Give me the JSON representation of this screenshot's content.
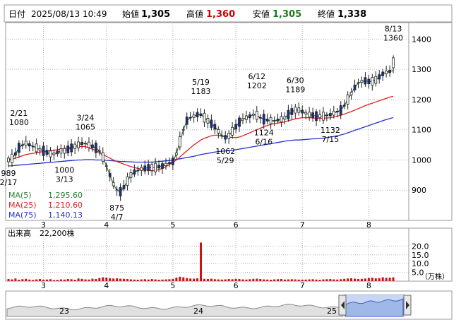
{
  "header": {
    "date_label": "日付",
    "date_value": "2025/08/13 10:49",
    "open_label": "始値",
    "open_value": "1,305",
    "high_label": "高値",
    "high_value": "1,360",
    "low_label": "安値",
    "low_value": "1,305",
    "close_label": "終値",
    "close_value": "1,338"
  },
  "legend": {
    "ma5_label": "MA(5)",
    "ma5_value": "1,295.60",
    "ma25_label": "MA(25)",
    "ma25_value": "1,210.60",
    "ma75_label": "MA(75)",
    "ma75_value": "1,140.13"
  },
  "volume_header": {
    "label": "出来高",
    "value": "22,200株"
  },
  "colors": {
    "up": "#ffffff",
    "down": "#1f2f8f",
    "candle_outline": "#222222",
    "ma5": "#2e7d32",
    "ma25": "#e02020",
    "ma75": "#2233cc",
    "high_text": "#d00000",
    "low_text": "#1a7a1a",
    "volume": "#d01010",
    "grid": "#b0b0b0",
    "mini_fill": "#a0b8e8"
  },
  "chart_data": [
    {
      "type": "candlestick",
      "ylim": [
        800,
        1450
      ],
      "y_ticks": [
        "1400",
        "1300",
        "1200",
        "1100",
        "1000",
        "900"
      ],
      "y_tick_values": [
        1400,
        1300,
        1200,
        1100,
        1000,
        900
      ],
      "x_ticks": [
        "3",
        "4",
        "5",
        "6",
        "7",
        "8"
      ],
      "x_tick_days": [
        10,
        28,
        47,
        65,
        84,
        103
      ],
      "total_days": 112,
      "annotations": [
        {
          "date": "2/21",
          "price": "1080",
          "day": 3,
          "value": 1080,
          "pos": "above"
        },
        {
          "date": "3/24",
          "price": "1065",
          "day": 22,
          "value": 1065,
          "pos": "above"
        },
        {
          "date": "5/19",
          "price": "1183",
          "day": 55,
          "value": 1183,
          "pos": "above"
        },
        {
          "date": "6/12",
          "price": "1202",
          "day": 71,
          "value": 1202,
          "pos": "above"
        },
        {
          "date": "6/30",
          "price": "1189",
          "day": 82,
          "value": 1189,
          "pos": "above"
        },
        {
          "date": "8/13",
          "price": "1360",
          "day": 110,
          "value": 1360,
          "pos": "above"
        },
        {
          "date": "2/17",
          "price": "989",
          "day": 0,
          "value": 989,
          "pos": "below"
        },
        {
          "date": "3/13",
          "price": "1000",
          "day": 16,
          "value": 1000,
          "pos": "below"
        },
        {
          "date": "4/7",
          "price": "875",
          "day": 31,
          "value": 875,
          "pos": "below"
        },
        {
          "date": "5/29",
          "price": "1062",
          "day": 62,
          "value": 1062,
          "pos": "below"
        },
        {
          "date": "6/16",
          "price": "1124",
          "day": 73,
          "value": 1124,
          "pos": "below"
        },
        {
          "date": "7/15",
          "price": "1132",
          "day": 92,
          "value": 1132,
          "pos": "below"
        }
      ],
      "series_ma5": [
        1000,
        1005,
        1020,
        1040,
        1050,
        1055,
        1050,
        1045,
        1040,
        1035,
        1030,
        1025,
        1020,
        1020,
        1025,
        1030,
        1030,
        1035,
        1040,
        1045,
        1050,
        1055,
        1055,
        1050,
        1045,
        1040,
        1030,
        1010,
        980,
        950,
        920,
        900,
        895,
        910,
        930,
        950,
        960,
        965,
        970,
        972,
        975,
        975,
        975,
        978,
        980,
        985,
        990,
        995,
        1020,
        1060,
        1100,
        1130,
        1140,
        1145,
        1150,
        1150,
        1140,
        1130,
        1120,
        1110,
        1095,
        1080,
        1075,
        1080,
        1095,
        1110,
        1125,
        1135,
        1140,
        1145,
        1150,
        1148,
        1140,
        1135,
        1132,
        1130,
        1130,
        1132,
        1135,
        1140,
        1150,
        1160,
        1165,
        1165,
        1160,
        1155,
        1150,
        1148,
        1145,
        1145,
        1145,
        1148,
        1150,
        1155,
        1160,
        1165,
        1180,
        1200,
        1220,
        1240,
        1255,
        1260,
        1262,
        1260,
        1260,
        1265,
        1275,
        1285,
        1290,
        1293,
        1295.6
      ],
      "series_ma25": [
        1000,
        1003,
        1006,
        1010,
        1014,
        1018,
        1020,
        1022,
        1024,
        1026,
        1028,
        1030,
        1031,
        1032,
        1034,
        1036,
        1038,
        1040,
        1042,
        1043,
        1044,
        1045,
        1044,
        1040,
        1036,
        1030,
        1024,
        1018,
        1012,
        1006,
        1000,
        995,
        990,
        986,
        982,
        978,
        975,
        972,
        970,
        968,
        966,
        964,
        965,
        968,
        972,
        978,
        985,
        992,
        1000,
        1010,
        1020,
        1030,
        1040,
        1050,
        1058,
        1066,
        1072,
        1076,
        1080,
        1082,
        1082,
        1080,
        1078,
        1076,
        1074,
        1074,
        1076,
        1080,
        1085,
        1090,
        1095,
        1100,
        1105,
        1110,
        1114,
        1118,
        1120,
        1122,
        1124,
        1126,
        1130,
        1133,
        1136,
        1138,
        1140,
        1140,
        1140,
        1139,
        1138,
        1138,
        1138,
        1139,
        1140,
        1142,
        1145,
        1148,
        1152,
        1156,
        1160,
        1165,
        1170,
        1175,
        1180,
        1184,
        1188,
        1192,
        1196,
        1200,
        1204,
        1208,
        1210.6
      ],
      "series_ma75": [
        980,
        981,
        982,
        983,
        984,
        985,
        986,
        987,
        988,
        989,
        990,
        991,
        992,
        993,
        994,
        995,
        996,
        997,
        998,
        999,
        1000,
        1000,
        1001,
        1001,
        1001,
        1000,
        1000,
        1000,
        999,
        998,
        997,
        996,
        995,
        995,
        994,
        994,
        993,
        993,
        993,
        993,
        993,
        993,
        994,
        995,
        996,
        997,
        998,
        1000,
        1002,
        1004,
        1006,
        1008,
        1010,
        1012,
        1015,
        1018,
        1020,
        1022,
        1024,
        1026,
        1028,
        1029,
        1030,
        1031,
        1032,
        1034,
        1036,
        1038,
        1040,
        1042,
        1044,
        1046,
        1048,
        1050,
        1052,
        1054,
        1056,
        1058,
        1060,
        1062,
        1064,
        1065,
        1066,
        1066,
        1067,
        1068,
        1069,
        1070,
        1070,
        1071,
        1072,
        1074,
        1076,
        1078,
        1080,
        1083,
        1086,
        1090,
        1094,
        1098,
        1102,
        1106,
        1110,
        1114,
        1118,
        1122,
        1126,
        1130,
        1134,
        1137,
        1140.13
      ]
    },
    {
      "type": "bar",
      "title": "出来高",
      "ylim": [
        0,
        25
      ],
      "y_ticks": [
        "20.0",
        "15.0",
        "10.0",
        "5.0"
      ],
      "y_tick_values": [
        20,
        15,
        10,
        5
      ],
      "unit_label": "（万株）",
      "x_ticks": [
        "3",
        "4",
        "5",
        "6",
        "7",
        "8"
      ],
      "values": [
        1.2,
        1.0,
        1.5,
        0.8,
        1.1,
        1.3,
        0.9,
        0.7,
        1.0,
        1.2,
        0.8,
        0.9,
        1.1,
        0.6,
        0.8,
        1.0,
        0.9,
        1.2,
        1.1,
        0.8,
        1.5,
        1.3,
        1.0,
        0.9,
        1.4,
        1.2,
        1.8,
        2.2,
        2.0,
        1.7,
        1.5,
        1.6,
        1.4,
        1.3,
        1.2,
        1.0,
        0.9,
        0.8,
        1.0,
        1.1,
        0.9,
        1.2,
        1.0,
        0.8,
        0.9,
        1.0,
        1.1,
        1.3,
        2.0,
        2.5,
        2.2,
        1.8,
        1.5,
        1.4,
        1.6,
        22.0,
        1.3,
        1.2,
        1.4,
        1.1,
        1.0,
        0.9,
        1.0,
        1.2,
        1.1,
        1.3,
        1.2,
        1.0,
        0.9,
        1.1,
        1.3,
        1.4,
        1.2,
        1.0,
        0.9,
        0.8,
        1.0,
        1.1,
        1.2,
        0.9,
        1.0,
        1.1,
        1.0,
        0.9,
        0.8,
        0.9,
        1.0,
        1.1,
        0.9,
        0.8,
        1.0,
        1.1,
        1.2,
        1.0,
        0.9,
        1.1,
        1.3,
        1.5,
        1.7,
        1.4,
        1.2,
        1.3,
        1.5,
        1.8,
        2.0,
        1.6,
        1.8,
        2.2,
        1.9,
        2.0,
        2.2
      ]
    },
    {
      "type": "area",
      "x_ticks": [
        "23",
        "24",
        "25"
      ]
    }
  ]
}
